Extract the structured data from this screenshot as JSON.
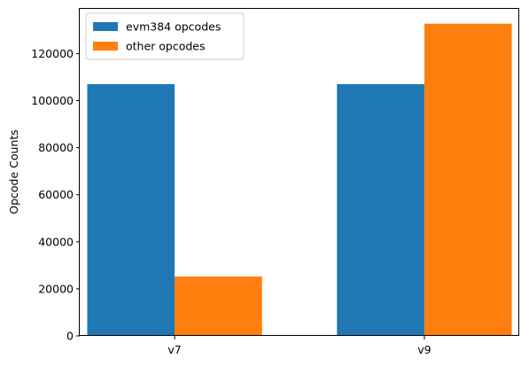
{
  "chart_data": {
    "type": "bar",
    "categories": [
      "v7",
      "v9"
    ],
    "series": [
      {
        "name": "evm384 opcodes",
        "values": [
          107000,
          107000
        ],
        "color": "#1f77b4"
      },
      {
        "name": "other opcodes",
        "values": [
          25200,
          132700
        ],
        "color": "#ff7f0e"
      }
    ],
    "xlabel": "",
    "ylabel": "Opcode Counts",
    "ylim": [
      0,
      139000
    ],
    "yticks": [
      0,
      20000,
      40000,
      60000,
      80000,
      100000,
      120000
    ],
    "grid": false,
    "legend_position": "top-left"
  }
}
